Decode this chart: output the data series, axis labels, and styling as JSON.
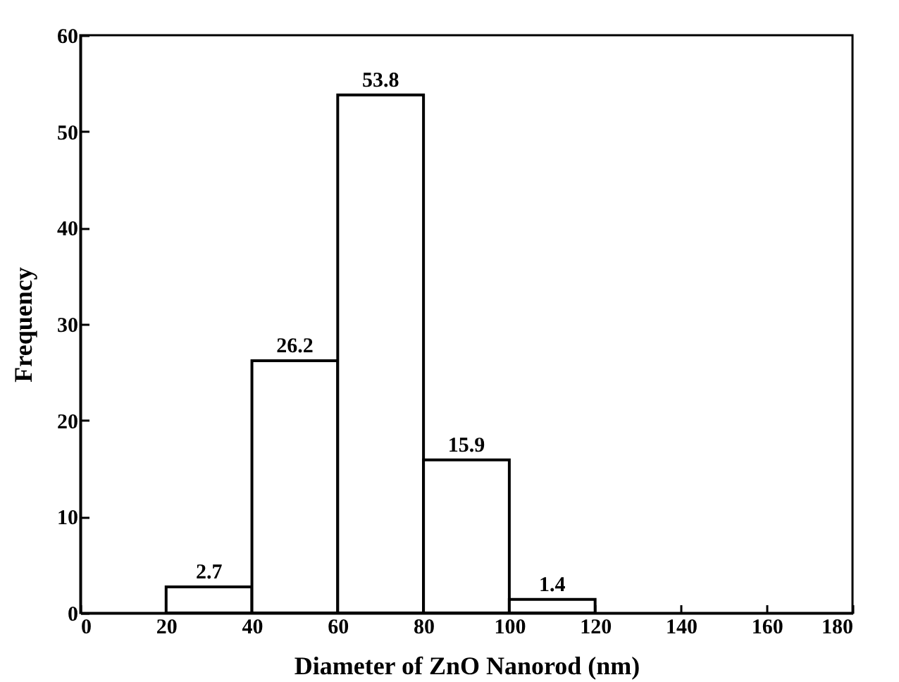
{
  "chart_data": {
    "type": "histogram",
    "xlabel": "Diameter of ZnO Nanorod (nm)",
    "ylabel": "Frequency",
    "bins": [
      20,
      40,
      60,
      80,
      100,
      120
    ],
    "values": [
      2.7,
      26.2,
      53.8,
      15.9,
      1.4
    ],
    "color": "#ffffff",
    "xlim": [
      0,
      180
    ],
    "xticks": [
      0,
      20,
      40,
      60,
      80,
      100,
      120,
      140,
      160,
      180
    ],
    "ylim": [
      0,
      60
    ],
    "yticks": [
      0,
      10,
      20,
      30,
      40,
      50,
      60
    ],
    "data_labels": true,
    "grid": false
  }
}
